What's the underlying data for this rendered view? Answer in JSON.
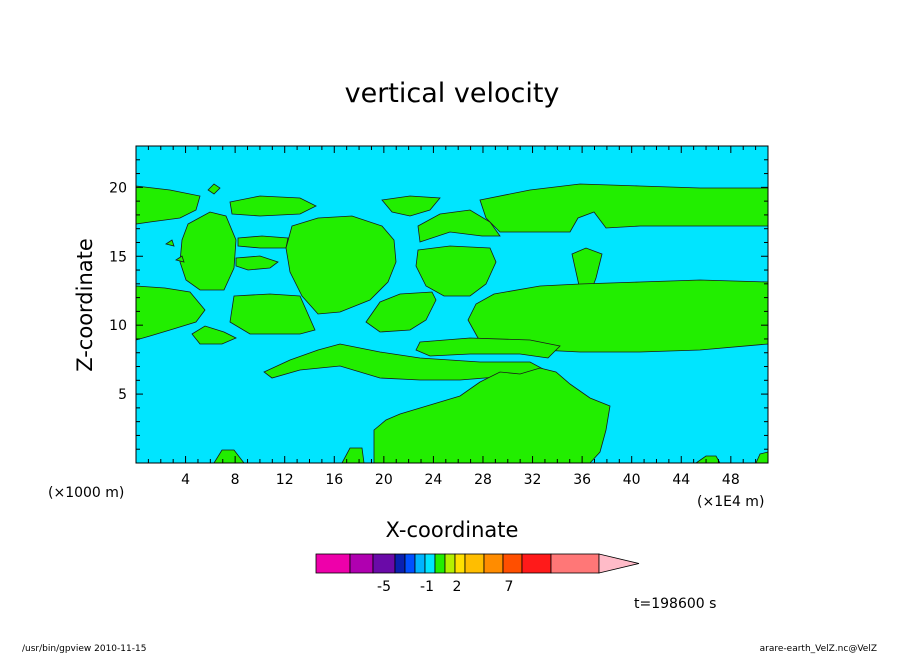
{
  "chart_data": {
    "type": "heatmap",
    "title": "vertical velocity",
    "xlabel": "X-coordinate",
    "ylabel": "Z-coordinate",
    "x_unit_note": "(×1000 m)",
    "x_scale_note": "(×1E4 m)",
    "xlim": [
      0,
      51
    ],
    "ylim": [
      0,
      23
    ],
    "x_ticks": [
      4,
      8,
      12,
      16,
      20,
      24,
      28,
      32,
      36,
      40,
      44,
      48
    ],
    "y_ticks": [
      5,
      10,
      15,
      20
    ],
    "background_color": "#00e5ff",
    "positive_color": "#22ee00",
    "colorbar": {
      "colors": [
        "#ee00aa",
        "#b000b0",
        "#6a0aa8",
        "#0a20b0",
        "#0050ff",
        "#00b4ff",
        "#00e5ff",
        "#22ee00",
        "#b4f000",
        "#ffe000",
        "#ffbe00",
        "#ff8c00",
        "#ff4f00",
        "#ff1a1a",
        "#ff7777",
        "#ffbbc8"
      ],
      "labels": [
        {
          "text": "-5",
          "value": -5
        },
        {
          "text": "-1",
          "value": -1
        },
        {
          "text": "2",
          "value": 2
        },
        {
          "text": "7",
          "value": 7
        }
      ]
    },
    "time_label": "t=198600 s"
  },
  "footer": {
    "left": "/usr/bin/gpview   2010-11-15",
    "right": "arare-earth_VelZ.nc@VelZ"
  }
}
